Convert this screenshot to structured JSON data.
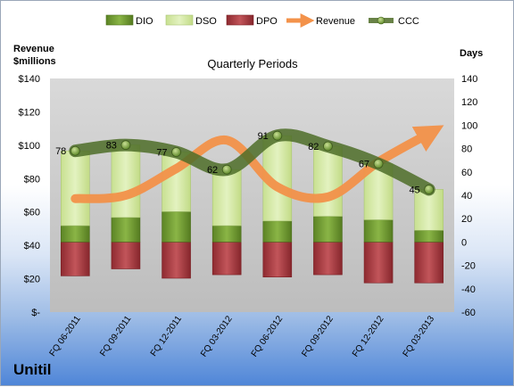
{
  "company": "Unitil",
  "chart_data": {
    "type": "bar",
    "title": "Quarterly Periods",
    "ylabel_left": "Revenue\n$millions",
    "ylabel_right": "Days",
    "categories": [
      "FQ 06-2011",
      "FQ 09-2011",
      "FQ 12-2011",
      "FQ 03-2012",
      "FQ 06-2012",
      "FQ 09-2012",
      "FQ 12-2012",
      "FQ 03-2013"
    ],
    "left_axis": {
      "range": [
        0,
        140
      ],
      "ticks": [
        0,
        20,
        40,
        60,
        80,
        100,
        120,
        140
      ],
      "tick_labels": [
        "$-",
        "$20",
        "$40",
        "$60",
        "$80",
        "$100",
        "$120",
        "$140"
      ]
    },
    "right_axis": {
      "range": [
        -60,
        140
      ],
      "ticks": [
        -60,
        -40,
        -20,
        0,
        20,
        40,
        60,
        80,
        100,
        120,
        140
      ],
      "tick_labels": [
        "-60",
        "-40",
        "-20",
        "0",
        "20",
        "40",
        "60",
        "80",
        "100",
        "120",
        "140"
      ]
    },
    "grid": false,
    "legend_position": "top",
    "series": [
      {
        "name": "DIO",
        "type": "stacked-bar",
        "axis": "right",
        "color": "#6f9a2e",
        "values": [
          14,
          21,
          26,
          14,
          18,
          22,
          19,
          10
        ]
      },
      {
        "name": "DSO",
        "type": "stacked-bar",
        "axis": "right",
        "color": "#d4e8a4",
        "values": [
          64,
          62,
          51,
          48,
          73,
          60,
          48,
          35
        ]
      },
      {
        "name": "DPO",
        "type": "negative-bar",
        "axis": "right",
        "color": "#a4343a",
        "values": [
          -29,
          -23,
          -31,
          -28,
          -30,
          -28,
          -35,
          -35
        ]
      },
      {
        "name": "Revenue",
        "type": "line",
        "axis": "left",
        "color": "#f3924a",
        "values": [
          68,
          70,
          86,
          103,
          75,
          69,
          90,
          107
        ]
      },
      {
        "name": "CCC",
        "type": "line",
        "axis": "right",
        "color": "#4e6d28",
        "values": [
          78,
          83,
          77,
          62,
          91,
          82,
          67,
          45
        ],
        "labels": [
          "78",
          "83",
          "77",
          "62",
          "91",
          "82",
          "67",
          "45"
        ]
      }
    ]
  }
}
